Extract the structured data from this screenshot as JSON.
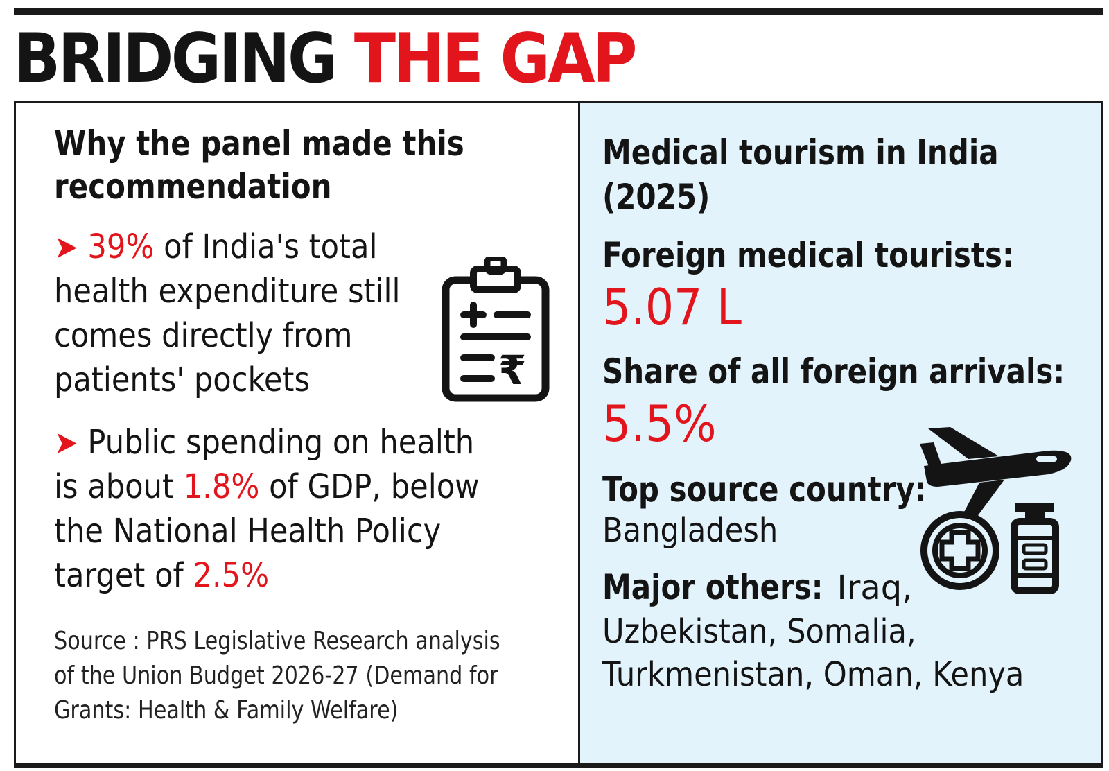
{
  "headline": {
    "part1": "BRIDGING",
    "part2": "THE GAP"
  },
  "left": {
    "heading_lines": [
      "Why the panel made this",
      "recommendation"
    ],
    "bullet1": {
      "arrow": "➤",
      "highlight": "39%",
      "line1_rest": " of India's total",
      "line2": "health expenditure still",
      "line3": "comes directly from",
      "line4": "patients' pockets"
    },
    "bullet2": {
      "arrow": "➤",
      "line1": " Public spending on health",
      "line2_pre": "is about ",
      "line2_highlight": "1.8%",
      "line2_post": " of GDP, below",
      "line3": "the National Health Policy",
      "line4_pre": "target of ",
      "line4_highlight": "2.5%"
    },
    "source_lines": [
      "Source : PRS Legislative Research analysis",
      "of the Union Budget 2026-27 (Demand for",
      "Grants: Health & Family Welfare)"
    ],
    "icon": "clipboard-rupee-icon"
  },
  "right": {
    "title_lines": [
      "Medical tourism in India",
      "(2025)"
    ],
    "foreign_tourists_label": "Foreign medical tourists:",
    "foreign_tourists_value": "5.07 L",
    "share_label": "Share of all foreign arrivals:",
    "share_value": "5.5%",
    "top_source_label": "Top source country:",
    "top_source_value": "Bangladesh",
    "major_others_label": "Major others:",
    "major_others_line1": " Iraq,",
    "major_others_line2": "Uzbekistan, Somalia,",
    "major_others_line3": "Turkmenistan, Oman, Kenya",
    "icon": "airplane-medical-icon"
  },
  "colors": {
    "accent_red": "#e2141c",
    "panel_blue": "#e3f3fc",
    "ink": "#141414"
  }
}
